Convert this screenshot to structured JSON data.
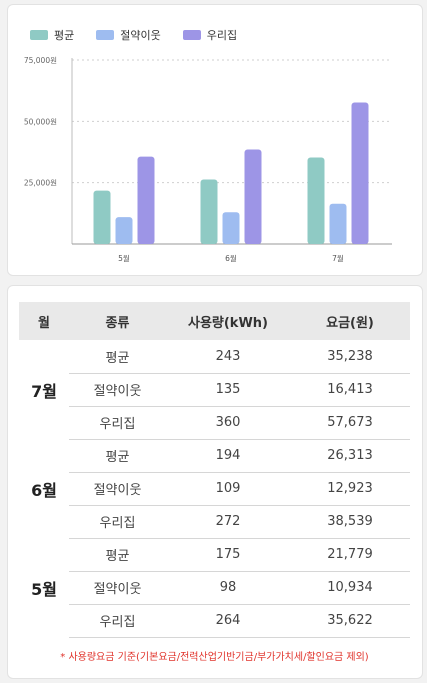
{
  "legend": [
    {
      "label": "평균",
      "color": "#8fcac4"
    },
    {
      "label": "절약이웃",
      "color": "#9ebcf0"
    },
    {
      "label": "우리집",
      "color": "#9d95e6"
    }
  ],
  "chart_data": {
    "type": "bar",
    "categories": [
      "5월",
      "6월",
      "7월"
    ],
    "series": [
      {
        "name": "평균",
        "values": [
          21779,
          26313,
          35238
        ],
        "color": "#8fcac4"
      },
      {
        "name": "절약이웃",
        "values": [
          10934,
          12923,
          16413
        ],
        "color": "#9ebcf0"
      },
      {
        "name": "우리집",
        "values": [
          35622,
          38539,
          57673
        ],
        "color": "#9d95e6"
      }
    ],
    "yticks": [
      "25,000원",
      "50,000원",
      "75,000원"
    ],
    "ytick_values": [
      25000,
      50000,
      75000
    ],
    "ylim": [
      0,
      75000
    ],
    "grid": true,
    "legend_position": "top-left"
  },
  "table": {
    "headers": [
      "월",
      "종류",
      "사용량(kWh)",
      "요금(원)"
    ],
    "groups": [
      {
        "month": "7월",
        "rows": [
          {
            "type": "평균",
            "usage": "243",
            "fee": "35,238"
          },
          {
            "type": "절약이웃",
            "usage": "135",
            "fee": "16,413"
          },
          {
            "type": "우리집",
            "usage": "360",
            "fee": "57,673"
          }
        ]
      },
      {
        "month": "6월",
        "rows": [
          {
            "type": "평균",
            "usage": "194",
            "fee": "26,313"
          },
          {
            "type": "절약이웃",
            "usage": "109",
            "fee": "12,923"
          },
          {
            "type": "우리집",
            "usage": "272",
            "fee": "38,539"
          }
        ]
      },
      {
        "month": "5월",
        "rows": [
          {
            "type": "평균",
            "usage": "175",
            "fee": "21,779"
          },
          {
            "type": "절약이웃",
            "usage": "98",
            "fee": "10,934"
          },
          {
            "type": "우리집",
            "usage": "264",
            "fee": "35,622"
          }
        ]
      }
    ]
  },
  "footnote": "* 사용량요금 기준(기본요금/전력산업기반기금/부가가치세/할인요금 제외)"
}
